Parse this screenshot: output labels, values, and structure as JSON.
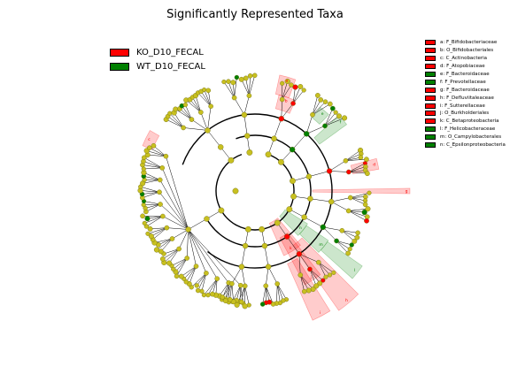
{
  "title": "Significantly Represented Taxa",
  "colors": {
    "KO": "#ff0000",
    "WT": "#008000",
    "neutral": "#c8c020",
    "edge": "#000000"
  },
  "class_legend": [
    {
      "label": "KO_D10_FECAL",
      "color": "#ff0000"
    },
    {
      "label": "WT_D10_FECAL",
      "color": "#008000"
    }
  ],
  "taxa_legend": [
    {
      "label": "a: F_Bifidobacteriaceae",
      "color": "#ff0000"
    },
    {
      "label": "b: O_Bifidobacteriales",
      "color": "#ff0000"
    },
    {
      "label": "c: C_Actinobacteria",
      "color": "#ff0000"
    },
    {
      "label": "d: F_Atopobiaceae",
      "color": "#ff0000"
    },
    {
      "label": "e: F_Bacteroidaceae",
      "color": "#008000"
    },
    {
      "label": "f: F_Prevotellaceae",
      "color": "#008000"
    },
    {
      "label": "g: F_Bacteroidaceae",
      "color": "#ff0000"
    },
    {
      "label": "h: F_Defluviitaleaceae",
      "color": "#ff0000"
    },
    {
      "label": "i: F_Sutterellaceae",
      "color": "#ff0000"
    },
    {
      "label": "j: O_Burkholderiales",
      "color": "#ff0000"
    },
    {
      "label": "k: C_Betaproteobacteria",
      "color": "#ff0000"
    },
    {
      "label": "l: F_Helicobacteraceae",
      "color": "#008000"
    },
    {
      "label": "m: O_Campylobacterales",
      "color": "#008000"
    },
    {
      "label": "n: C_Epsilonproteobacteria",
      "color": "#008000"
    }
  ],
  "chart_data": {
    "type": "cladogram",
    "title": "Significantly Represented Taxa",
    "classes": [
      "KO_D10_FECAL",
      "WT_D10_FECAL"
    ],
    "highlighted_clades": [
      {
        "letter": "a",
        "label": "F_Bifidobacteriaceae",
        "class": "KO_D10_FECAL"
      },
      {
        "letter": "b",
        "label": "O_Bifidobacteriales",
        "class": "KO_D10_FECAL"
      },
      {
        "letter": "c",
        "label": "C_Actinobacteria",
        "class": "KO_D10_FECAL"
      },
      {
        "letter": "d",
        "label": "F_Atopobiaceae",
        "class": "KO_D10_FECAL"
      },
      {
        "letter": "e",
        "label": "F_Bacteroidaceae",
        "class": "WT_D10_FECAL"
      },
      {
        "letter": "f",
        "label": "F_Prevotellaceae",
        "class": "WT_D10_FECAL"
      },
      {
        "letter": "g",
        "label": "F_Bacteroidaceae",
        "class": "KO_D10_FECAL"
      },
      {
        "letter": "h",
        "label": "F_Defluviitaleaceae",
        "class": "KO_D10_FECAL"
      },
      {
        "letter": "i",
        "label": "F_Sutterellaceae",
        "class": "KO_D10_FECAL"
      },
      {
        "letter": "j",
        "label": "O_Burkholderiales",
        "class": "KO_D10_FECAL"
      },
      {
        "letter": "k",
        "label": "C_Betaproteobacteria",
        "class": "KO_D10_FECAL"
      },
      {
        "letter": "l",
        "label": "F_Helicobacteraceae",
        "class": "WT_D10_FECAL"
      },
      {
        "letter": "m",
        "label": "O_Campylobacterales",
        "class": "WT_D10_FECAL"
      },
      {
        "letter": "n",
        "label": "C_Epsilonproteobacteria",
        "class": "WT_D10_FECAL"
      }
    ]
  }
}
